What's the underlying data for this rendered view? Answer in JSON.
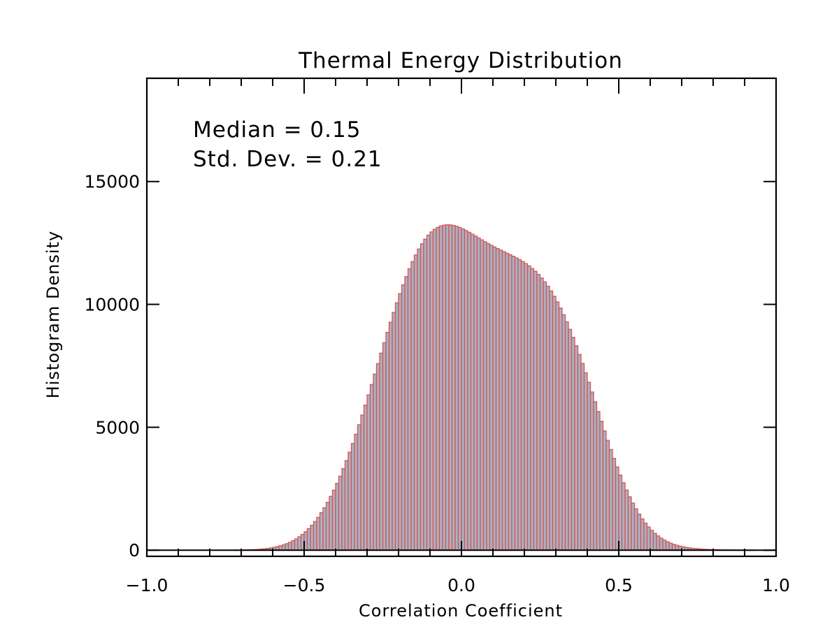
{
  "chart_data": {
    "type": "bar",
    "title": "Thermal Energy Distribution",
    "xlabel": "Correlation Coefficient",
    "ylabel": "Histogram Density",
    "xlim": [
      -1.0,
      1.0
    ],
    "ylim": [
      -250,
      19200
    ],
    "xticks": [
      -1.0,
      -0.5,
      0.0,
      0.5,
      1.0
    ],
    "xtick_labels": [
      "−1.0",
      "−0.5",
      "0.0",
      "0.5",
      "1.0"
    ],
    "yticks": [
      0,
      5000,
      10000,
      15000
    ],
    "ytick_labels": [
      "0",
      "5000",
      "10000",
      "15000"
    ],
    "annotations": [
      "Median = 0.15",
      "Std. Dev. = 0.21"
    ],
    "bin_width": 0.01,
    "bins_start": -0.72,
    "bins_end": 0.85,
    "bar_fill": "#a7b3c6",
    "bar_edge": "#d9534f",
    "grid": false,
    "values": [
      4,
      6,
      8,
      11,
      15,
      20,
      26,
      34,
      44,
      57,
      73,
      92,
      115,
      143,
      177,
      217,
      264,
      319,
      384,
      458,
      544,
      641,
      751,
      875,
      1013,
      1167,
      1337,
      1524,
      1727,
      1948,
      2187,
      2443,
      2718,
      3010,
      3319,
      3645,
      3988,
      4345,
      4717,
      5102,
      5498,
      5904,
      6318,
      6739,
      7164,
      7591,
      8018,
      8442,
      8861,
      9273,
      9675,
      10064,
      10438,
      10795,
      11133,
      11449,
      11742,
      12010,
      12252,
      12467,
      12655,
      12815,
      12948,
      13054,
      13135,
      13192,
      13226,
      13239,
      13234,
      13212,
      13176,
      13128,
      13070,
      13004,
      12933,
      12857,
      12780,
      12702,
      12625,
      12549,
      12476,
      12405,
      12337,
      12271,
      12208,
      12146,
      12084,
      12022,
      11958,
      11891,
      11820,
      11743,
      11658,
      11565,
      11461,
      11346,
      11217,
      11074,
      10915,
      10739,
      10546,
      10333,
      10102,
      9851,
      9581,
      9292,
      8985,
      8660,
      8319,
      7964,
      7596,
      7217,
      6829,
      6435,
      6038,
      5640,
      5244,
      4853,
      4469,
      4096,
      3734,
      3387,
      3055,
      2741,
      2446,
      2171,
      1916,
      1681,
      1467,
      1273,
      1099,
      943,
      806,
      685,
      579,
      488,
      410,
      343,
      286,
      238,
      198,
      164,
      136,
      113,
      93,
      77,
      64,
      53,
      44,
      37,
      31,
      26,
      22,
      19,
      16,
      14,
      12,
      10,
      9,
      8,
      7,
      6,
      5,
      5,
      4
    ]
  }
}
